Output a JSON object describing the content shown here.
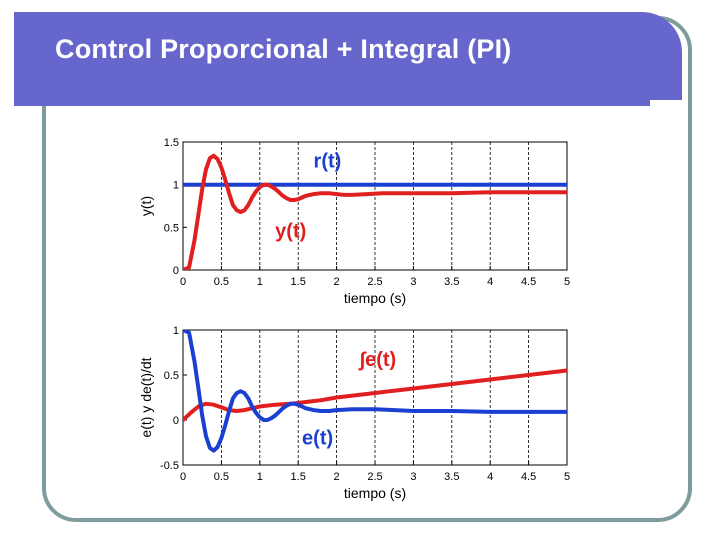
{
  "slide": {
    "title": "Control Proporcional + Integral (PI)"
  },
  "colors": {
    "title_bar": "#6666cc",
    "frame": "#7f9c9c",
    "red_series": "#e02020",
    "blue_series": "#1a3fd1"
  },
  "chart_data": [
    {
      "type": "line",
      "xlabel": "tiempo (s)",
      "ylabel": "y(t)",
      "xlim": [
        0,
        5
      ],
      "ylim": [
        0,
        1.5
      ],
      "xticks": [
        "0",
        "0.5",
        "1",
        "1.5",
        "2",
        "2.5",
        "3",
        "3.5",
        "4",
        "4.5",
        "5"
      ],
      "yticks": [
        "0",
        "0.5",
        "1",
        "1.5"
      ],
      "grid": "dashed vertical",
      "annotations": [
        {
          "text": "r(t)",
          "x": 1.7,
          "y": 1.2,
          "color": "#1a3fd1"
        },
        {
          "text": "y(t)",
          "x": 1.2,
          "y": 0.38,
          "color": "#e02020"
        }
      ],
      "series": [
        {
          "name": "r(t)",
          "color": "#1a3fd1",
          "x": [
            0,
            5
          ],
          "y": [
            1,
            1
          ]
        },
        {
          "name": "y(t)",
          "color": "#e02020",
          "x": [
            0,
            0.08,
            0.15,
            0.2,
            0.25,
            0.3,
            0.35,
            0.4,
            0.45,
            0.5,
            0.55,
            0.6,
            0.65,
            0.7,
            0.75,
            0.8,
            0.85,
            0.9,
            0.95,
            1.0,
            1.05,
            1.1,
            1.15,
            1.2,
            1.25,
            1.3,
            1.35,
            1.4,
            1.45,
            1.5,
            1.55,
            1.6,
            1.7,
            1.8,
            1.9,
            2.0,
            2.1,
            2.2,
            2.4,
            2.6,
            2.8,
            3.0,
            3.5,
            4.0,
            4.5,
            5.0
          ],
          "y": [
            0,
            0.03,
            0.35,
            0.65,
            0.95,
            1.18,
            1.31,
            1.34,
            1.3,
            1.2,
            1.06,
            0.9,
            0.76,
            0.7,
            0.68,
            0.7,
            0.76,
            0.85,
            0.92,
            0.97,
            1.0,
            1.0,
            0.98,
            0.95,
            0.91,
            0.87,
            0.84,
            0.82,
            0.82,
            0.83,
            0.85,
            0.87,
            0.89,
            0.9,
            0.9,
            0.89,
            0.88,
            0.88,
            0.89,
            0.9,
            0.9,
            0.9,
            0.9,
            0.91,
            0.91,
            0.91
          ]
        }
      ]
    },
    {
      "type": "line",
      "xlabel": "tiempo (s)",
      "ylabel": "e(t) y de(t)/dt",
      "xlim": [
        0,
        5
      ],
      "ylim": [
        -0.5,
        1
      ],
      "xticks": [
        "0",
        "0.5",
        "1",
        "1.5",
        "2",
        "2.5",
        "3",
        "3.5",
        "4",
        "4.5",
        "5"
      ],
      "yticks": [
        "-0.5",
        "0",
        "0.5",
        "1"
      ],
      "grid": "dashed vertical",
      "annotations": [
        {
          "text": "∫e(t)",
          "x": 2.3,
          "y": 0.6,
          "color": "#e02020"
        },
        {
          "text": "e(t)",
          "x": 1.55,
          "y": -0.27,
          "color": "#1a3fd1"
        }
      ],
      "series": [
        {
          "name": "∫e(t)",
          "color": "#e02020",
          "x": [
            0,
            0.1,
            0.2,
            0.3,
            0.4,
            0.5,
            0.6,
            0.7,
            0.8,
            0.9,
            1.0,
            1.2,
            1.4,
            1.6,
            1.8,
            2.0,
            2.5,
            3.0,
            3.5,
            4.0,
            4.5,
            5.0
          ],
          "y": [
            0,
            0.08,
            0.15,
            0.18,
            0.17,
            0.14,
            0.11,
            0.1,
            0.11,
            0.13,
            0.15,
            0.17,
            0.18,
            0.2,
            0.22,
            0.25,
            0.3,
            0.35,
            0.4,
            0.45,
            0.5,
            0.55
          ]
        },
        {
          "name": "e(t)",
          "color": "#1a3fd1",
          "x": [
            0,
            0.08,
            0.15,
            0.2,
            0.25,
            0.3,
            0.35,
            0.4,
            0.45,
            0.5,
            0.55,
            0.6,
            0.65,
            0.7,
            0.75,
            0.8,
            0.85,
            0.9,
            0.95,
            1.0,
            1.05,
            1.1,
            1.15,
            1.2,
            1.25,
            1.3,
            1.35,
            1.4,
            1.45,
            1.5,
            1.55,
            1.6,
            1.7,
            1.8,
            1.9,
            2.0,
            2.2,
            2.5,
            3.0,
            3.5,
            4.0,
            4.5,
            5.0
          ],
          "y": [
            1,
            0.97,
            0.65,
            0.35,
            0.05,
            -0.18,
            -0.31,
            -0.34,
            -0.3,
            -0.2,
            -0.06,
            0.1,
            0.24,
            0.3,
            0.32,
            0.3,
            0.24,
            0.15,
            0.08,
            0.03,
            0.0,
            0.0,
            0.02,
            0.05,
            0.09,
            0.13,
            0.16,
            0.18,
            0.18,
            0.17,
            0.15,
            0.13,
            0.11,
            0.1,
            0.1,
            0.11,
            0.12,
            0.12,
            0.1,
            0.1,
            0.09,
            0.09,
            0.09
          ]
        }
      ]
    }
  ]
}
